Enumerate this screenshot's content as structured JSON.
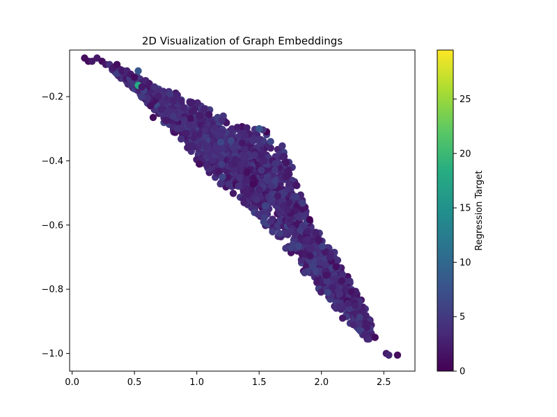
{
  "chart_data": {
    "type": "scatter",
    "title": "2D Visualization of Graph Embeddings",
    "xlabel": "",
    "ylabel": "",
    "xlim": [
      -0.02,
      2.75
    ],
    "ylim": [
      -1.055,
      -0.055
    ],
    "xticks": [
      0.0,
      0.5,
      1.0,
      1.5,
      2.0,
      2.5
    ],
    "xtick_labels": [
      "0.0",
      "0.5",
      "1.0",
      "1.5",
      "2.0",
      "2.5"
    ],
    "yticks": [
      -0.2,
      -0.4,
      -0.6,
      -0.8,
      -1.0
    ],
    "ytick_labels": [
      "−0.2",
      "−0.4",
      "−0.6",
      "−0.8",
      "−1.0"
    ],
    "grid": false,
    "colormap": "viridis",
    "colorbar": {
      "label": "Regression Target",
      "range": [
        0,
        29.5
      ],
      "ticks": [
        0,
        5,
        10,
        15,
        20,
        25
      ],
      "tick_labels": [
        "0",
        "5",
        "10",
        "15",
        "20",
        "25"
      ]
    },
    "points": [
      {
        "x": 0.1,
        "y": -0.08,
        "c": 1
      },
      {
        "x": 0.13,
        "y": -0.09,
        "c": 1
      },
      {
        "x": 0.16,
        "y": -0.09,
        "c": 2
      },
      {
        "x": 0.2,
        "y": -0.08,
        "c": 2
      },
      {
        "x": 0.24,
        "y": -0.09,
        "c": 1
      },
      {
        "x": 0.27,
        "y": -0.1,
        "c": 2
      },
      {
        "x": 0.3,
        "y": -0.1,
        "c": 4
      },
      {
        "x": 0.33,
        "y": -0.11,
        "c": 2
      },
      {
        "x": 0.36,
        "y": -0.1,
        "c": 1
      },
      {
        "x": 0.4,
        "y": -0.12,
        "c": 2
      },
      {
        "x": 0.44,
        "y": -0.12,
        "c": 3
      },
      {
        "x": 0.47,
        "y": -0.13,
        "c": 2
      },
      {
        "x": 0.5,
        "y": -0.14,
        "c": 1
      },
      {
        "x": 0.53,
        "y": -0.12,
        "c": 8
      },
      {
        "x": 0.53,
        "y": -0.165,
        "c": 18
      },
      {
        "x": 0.56,
        "y": -0.17,
        "c": 2
      },
      {
        "x": 0.59,
        "y": -0.15,
        "c": 3
      },
      {
        "x": 0.65,
        "y": -0.265,
        "c": 1
      },
      {
        "x": 0.62,
        "y": -0.16,
        "c": 2
      },
      {
        "x": 0.66,
        "y": -0.17,
        "c": 4
      },
      {
        "x": 1.02,
        "y": -0.41,
        "c": 1
      },
      {
        "x": 1.55,
        "y": -0.54,
        "c": 6
      },
      {
        "x": 1.5,
        "y": -0.3,
        "c": 8
      },
      {
        "x": 2.05,
        "y": -0.81,
        "c": 6
      },
      {
        "x": 2.17,
        "y": -0.89,
        "c": 2
      },
      {
        "x": 2.35,
        "y": -0.94,
        "c": 3
      },
      {
        "x": 2.43,
        "y": -0.95,
        "c": 1
      },
      {
        "x": 2.52,
        "y": -1.0,
        "c": 2
      },
      {
        "x": 2.54,
        "y": -1.005,
        "c": 3
      },
      {
        "x": 2.61,
        "y": -1.005,
        "c": 1
      }
    ],
    "band": {
      "count": 2600,
      "upper": [
        [
          0.3,
          -0.1
        ],
        [
          0.6,
          -0.15
        ],
        [
          0.9,
          -0.2
        ],
        [
          1.2,
          -0.25
        ],
        [
          1.4,
          -0.29
        ],
        [
          1.58,
          -0.3
        ],
        [
          1.7,
          -0.36
        ],
        [
          1.8,
          -0.45
        ],
        [
          1.9,
          -0.55
        ],
        [
          2.0,
          -0.63
        ],
        [
          2.2,
          -0.74
        ],
        [
          2.4,
          -0.9
        ]
      ],
      "lower": [
        [
          0.3,
          -0.11
        ],
        [
          0.6,
          -0.22
        ],
        [
          0.85,
          -0.33
        ],
        [
          1.0,
          -0.4
        ],
        [
          1.2,
          -0.48
        ],
        [
          1.4,
          -0.54
        ],
        [
          1.6,
          -0.63
        ],
        [
          1.8,
          -0.72
        ],
        [
          2.0,
          -0.82
        ],
        [
          2.2,
          -0.9
        ],
        [
          2.4,
          -0.97
        ]
      ],
      "color_typical": 3.5,
      "color_spread": 2.5
    }
  }
}
